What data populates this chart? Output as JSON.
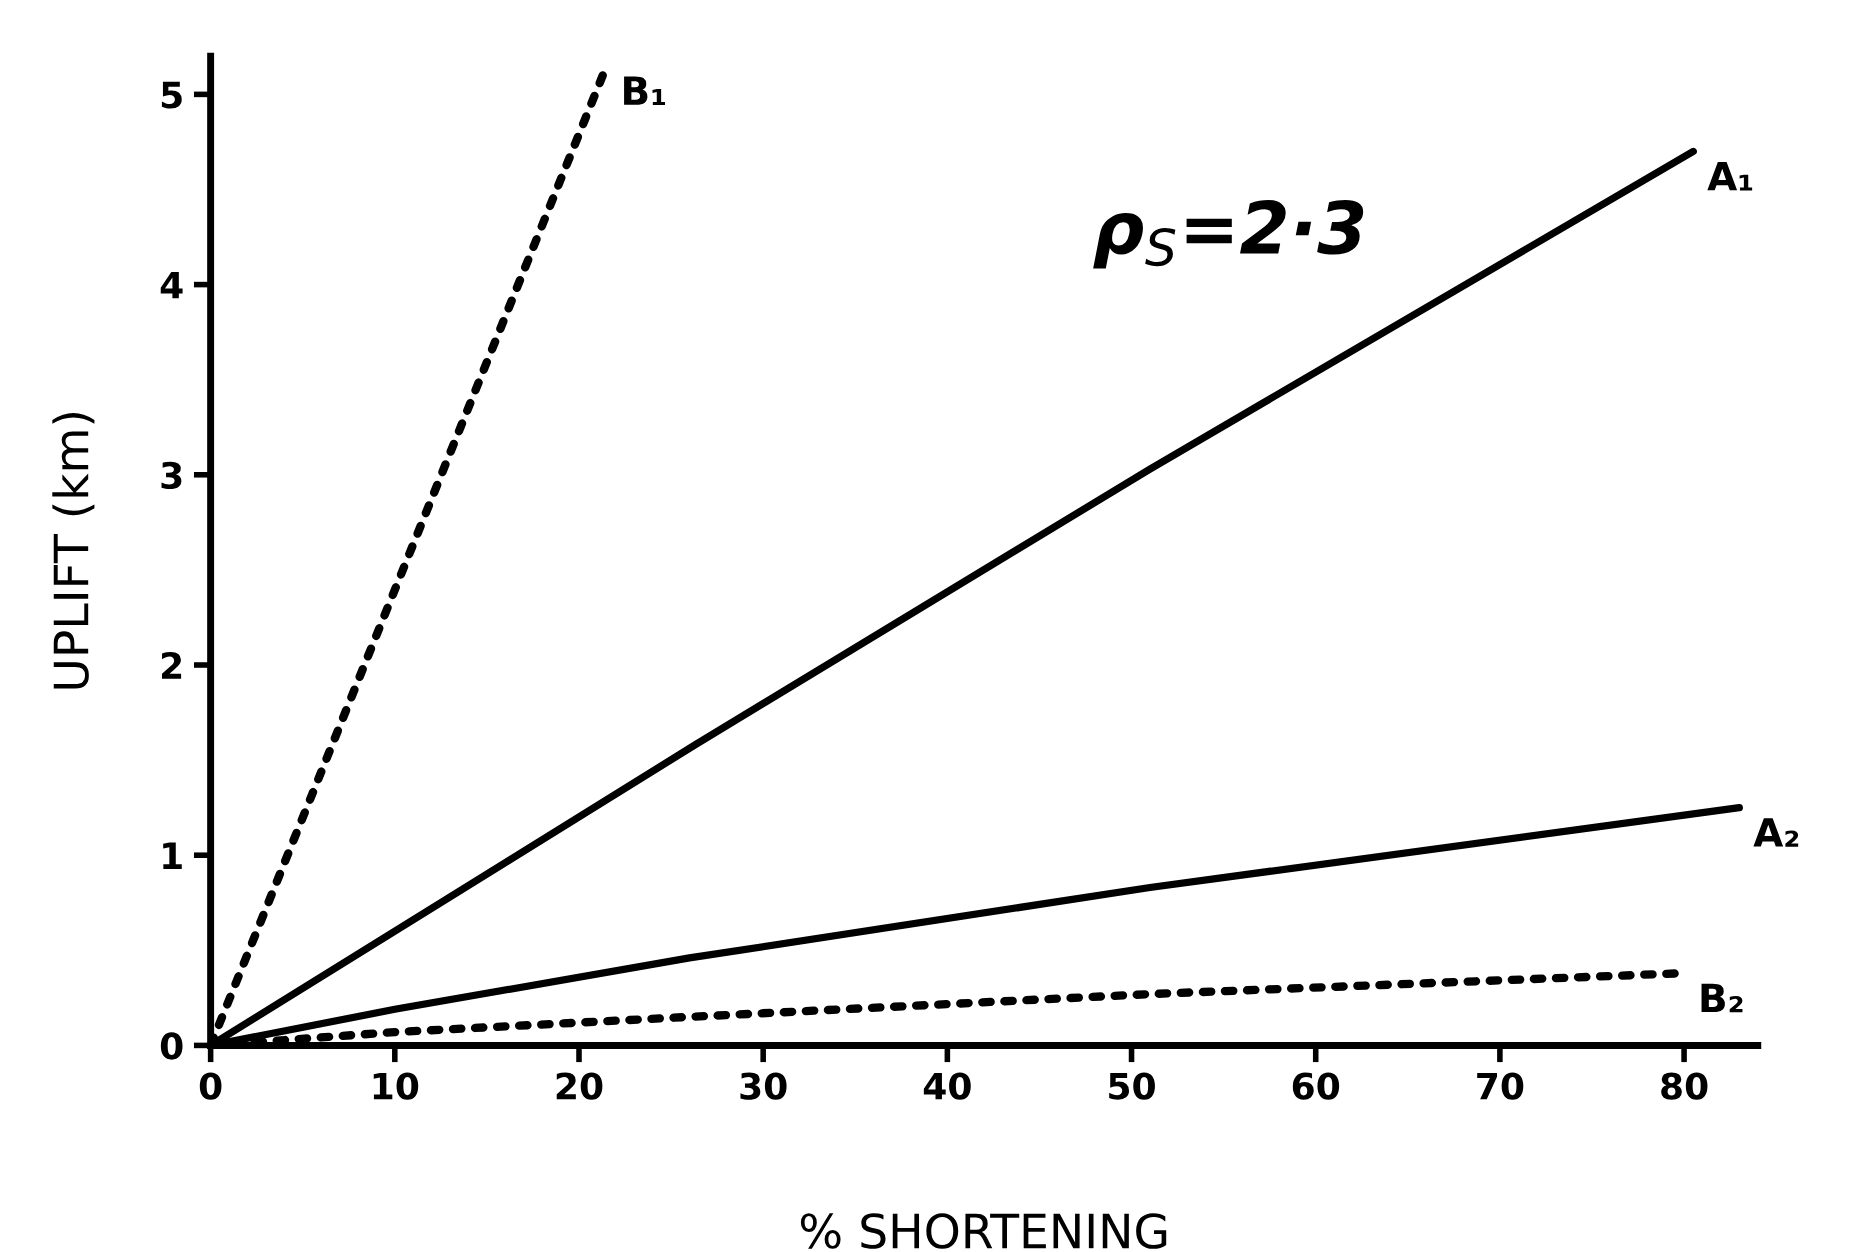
{
  "chart_data": {
    "type": "line",
    "xlabel": "% SHORTENING",
    "ylabel": "UPLIFT (km)",
    "xlim": [
      0,
      84
    ],
    "xticks": [
      0,
      10,
      20,
      30,
      40,
      50,
      60,
      70,
      80
    ],
    "ylim": [
      0,
      5.2
    ],
    "yticks": [
      0,
      1,
      2,
      3,
      4,
      5
    ],
    "grid": false,
    "legend": false,
    "marker": "none",
    "series": [
      {
        "name": "B₁",
        "color": "#000000",
        "line_style": "dotted",
        "x": [
          0,
          21.5
        ],
        "values": [
          0,
          5.15
        ]
      },
      {
        "name": "A₁",
        "color": "#000000",
        "line_style": "solid",
        "x": [
          0,
          26.3,
          51,
          80.5
        ],
        "values": [
          0,
          1.58,
          3.03,
          4.7
        ]
      },
      {
        "name": "A₂",
        "color": "#000000",
        "line_style": "solid",
        "x": [
          0,
          10,
          26,
          51,
          83
        ],
        "values": [
          0,
          0.19,
          0.46,
          0.83,
          1.25
        ]
      },
      {
        "name": "B₂",
        "color": "#000000",
        "line_style": "dotted",
        "x": [
          0,
          10,
          26,
          51,
          80
        ],
        "values": [
          0,
          0.07,
          0.15,
          0.27,
          0.38
        ]
      }
    ],
    "annotations": [
      "ρ$_{S}$=2·3"
    ]
  }
}
